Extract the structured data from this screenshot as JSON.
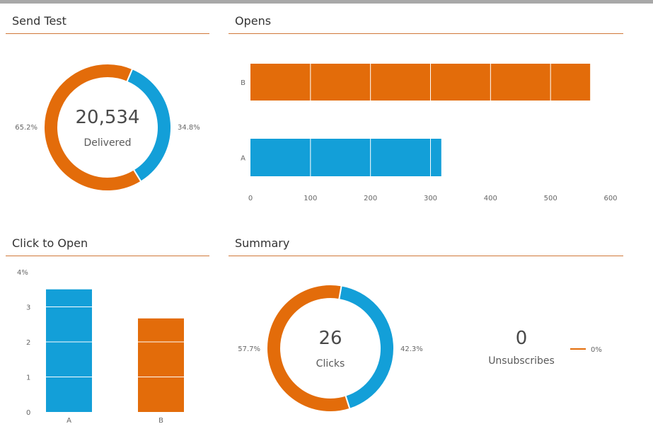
{
  "colors": {
    "orange": "#e36c0a",
    "blue": "#139fd8",
    "rule": "#d0783a"
  },
  "panels": {
    "send_test": {
      "title": "Send Test"
    },
    "opens": {
      "title": "Opens"
    },
    "click_to_open": {
      "title": "Click to Open"
    },
    "summary": {
      "title": "Summary"
    }
  },
  "chart_data": [
    {
      "id": "send_test",
      "type": "pie",
      "title": "Send Test",
      "center_value": "20,534",
      "center_label": "Delivered",
      "slices": [
        {
          "value": 34.8,
          "label": "34.8%",
          "color": "#139fd8"
        },
        {
          "value": 65.2,
          "label": "65.2%",
          "color": "#e36c0a"
        }
      ]
    },
    {
      "id": "opens",
      "type": "bar",
      "orientation": "horizontal",
      "title": "Opens",
      "categories": [
        "B",
        "A"
      ],
      "values": [
        566,
        318
      ],
      "colors": [
        "#e36c0a",
        "#139fd8"
      ],
      "xlim": [
        0,
        600
      ],
      "xticks": [
        0,
        100,
        200,
        300,
        400,
        500,
        600
      ],
      "xtick_labels": [
        "0",
        "100",
        "200",
        "300",
        "400",
        "500",
        "600"
      ]
    },
    {
      "id": "click_to_open",
      "type": "bar",
      "orientation": "vertical",
      "title": "Click to Open",
      "categories": [
        "A",
        "B"
      ],
      "values": [
        3.5,
        2.67
      ],
      "colors": [
        "#139fd8",
        "#e36c0a"
      ],
      "ylim": [
        0,
        4
      ],
      "yticks": [
        0,
        1,
        2,
        3,
        4
      ],
      "ytick_labels": [
        "0",
        "1",
        "2",
        "3",
        "4%"
      ]
    },
    {
      "id": "summary_clicks",
      "type": "pie",
      "title": "Summary",
      "center_value": "26",
      "center_label": "Clicks",
      "slices": [
        {
          "value": 42.3,
          "label": "42.3%",
          "color": "#139fd8"
        },
        {
          "value": 57.7,
          "label": "57.7%",
          "color": "#e36c0a"
        }
      ]
    },
    {
      "id": "summary_unsubscribes",
      "type": "pie",
      "title": "Summary",
      "center_value": "0",
      "center_label": "Unsubscribes",
      "slices": [
        {
          "value": 0,
          "label": "0%",
          "color": "#e36c0a"
        }
      ]
    }
  ]
}
